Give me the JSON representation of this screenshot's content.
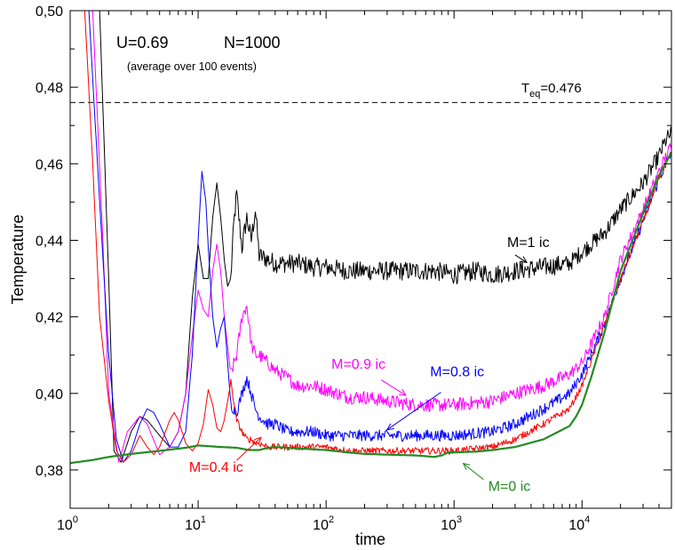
{
  "chart_data": {
    "type": "line",
    "xlabel": "time",
    "ylabel": "Temperature",
    "xscale": "log",
    "xlim": [
      1,
      50000
    ],
    "ylim": [
      0.37,
      0.5
    ],
    "x_ticks": [
      {
        "value": 1,
        "base": "10",
        "exp": "0"
      },
      {
        "value": 10,
        "base": "10",
        "exp": "1"
      },
      {
        "value": 100,
        "base": "10",
        "exp": "2"
      },
      {
        "value": 1000,
        "base": "10",
        "exp": "3"
      },
      {
        "value": 10000,
        "base": "10",
        "exp": "4"
      }
    ],
    "y_ticks": [
      {
        "value": 0.38,
        "label": "0,38"
      },
      {
        "value": 0.4,
        "label": "0,40"
      },
      {
        "value": 0.42,
        "label": "0,42"
      },
      {
        "value": 0.44,
        "label": "0,44"
      },
      {
        "value": 0.46,
        "label": "0,46"
      },
      {
        "value": 0.48,
        "label": "0,48"
      },
      {
        "value": 0.5,
        "label": "0,50"
      }
    ],
    "reference_line": {
      "y": 0.476,
      "label_main": "T",
      "label_sub": "eq",
      "label_rest": "=0.476"
    },
    "info": {
      "params": "U=0.69",
      "size": "N=1000",
      "note": "(average over 100 events)"
    },
    "series": [
      {
        "name": "M=1 ic",
        "color": "#000000",
        "width": 1,
        "noise": 0.0025,
        "x": [
          1,
          1.7,
          2,
          2.2,
          2.5,
          3,
          3.5,
          4,
          5,
          6,
          7,
          8,
          9,
          10,
          11,
          12,
          13,
          14,
          15,
          16,
          17,
          18,
          19,
          20,
          22,
          24,
          26,
          28,
          30,
          35,
          40,
          50,
          60,
          80,
          100,
          150,
          200,
          300,
          500,
          700,
          1000,
          1500,
          2000,
          3000,
          5000,
          8000,
          10000,
          15000,
          20000,
          30000,
          40000,
          45000,
          50000
        ],
        "y": [
          0.52,
          0.5,
          0.43,
          0.385,
          0.382,
          0.39,
          0.394,
          0.393,
          0.389,
          0.386,
          0.39,
          0.4,
          0.425,
          0.439,
          0.43,
          0.43,
          0.446,
          0.455,
          0.446,
          0.435,
          0.428,
          0.43,
          0.444,
          0.452,
          0.438,
          0.446,
          0.44,
          0.448,
          0.436,
          0.435,
          0.434,
          0.434,
          0.434,
          0.433,
          0.433,
          0.432,
          0.432,
          0.432,
          0.432,
          0.432,
          0.431,
          0.432,
          0.431,
          0.432,
          0.433,
          0.434,
          0.437,
          0.442,
          0.448,
          0.455,
          0.462,
          0.466,
          0.468
        ]
      },
      {
        "name": "M=0.9 ic",
        "color": "#ff00ff",
        "width": 1,
        "noise": 0.0018,
        "x": [
          1,
          1.5,
          1.8,
          2,
          2.4,
          2.8,
          3.5,
          4,
          5,
          6,
          7,
          8,
          9,
          10,
          11,
          12,
          13,
          14,
          15,
          16,
          18,
          20,
          22,
          24,
          26,
          28,
          30,
          35,
          40,
          50,
          60,
          80,
          100,
          150,
          200,
          300,
          500,
          700,
          1000,
          2000,
          3000,
          5000,
          8000,
          10000,
          15000,
          20000,
          30000,
          40000,
          50000
        ],
        "y": [
          0.52,
          0.5,
          0.44,
          0.4,
          0.382,
          0.39,
          0.394,
          0.392,
          0.384,
          0.386,
          0.39,
          0.4,
          0.415,
          0.427,
          0.422,
          0.42,
          0.432,
          0.439,
          0.432,
          0.42,
          0.405,
          0.41,
          0.42,
          0.423,
          0.413,
          0.41,
          0.41,
          0.408,
          0.406,
          0.404,
          0.402,
          0.402,
          0.401,
          0.399,
          0.399,
          0.398,
          0.397,
          0.397,
          0.397,
          0.398,
          0.4,
          0.402,
          0.405,
          0.408,
          0.42,
          0.435,
          0.448,
          0.458,
          0.465
        ]
      },
      {
        "name": "M=0.8 ic",
        "color": "#0000ff",
        "width": 1,
        "noise": 0.0015,
        "x": [
          1,
          1.4,
          1.7,
          2,
          2.3,
          2.6,
          3,
          3.5,
          4,
          4.5,
          5,
          6,
          7,
          8,
          9,
          10,
          10.7,
          11.5,
          12,
          13,
          14,
          15,
          16,
          17,
          18,
          20,
          22,
          24,
          26,
          28,
          30,
          35,
          40,
          50,
          60,
          80,
          100,
          150,
          200,
          300,
          500,
          700,
          1000,
          2000,
          3000,
          5000,
          8000,
          10000,
          15000,
          20000,
          30000,
          40000,
          50000
        ],
        "y": [
          0.52,
          0.5,
          0.45,
          0.41,
          0.388,
          0.382,
          0.385,
          0.392,
          0.396,
          0.395,
          0.392,
          0.386,
          0.386,
          0.39,
          0.41,
          0.44,
          0.458,
          0.45,
          0.438,
          0.42,
          0.412,
          0.417,
          0.42,
          0.408,
          0.397,
          0.395,
          0.4,
          0.404,
          0.4,
          0.396,
          0.394,
          0.392,
          0.392,
          0.39,
          0.39,
          0.39,
          0.389,
          0.389,
          0.389,
          0.389,
          0.389,
          0.389,
          0.389,
          0.39,
          0.392,
          0.396,
          0.4,
          0.405,
          0.418,
          0.43,
          0.445,
          0.456,
          0.463
        ]
      },
      {
        "name": "M=0.4 ic",
        "color": "#ff0000",
        "width": 1,
        "noise": 0.0009,
        "x": [
          1,
          1.3,
          1.5,
          1.7,
          2,
          2.3,
          2.6,
          3,
          3.5,
          4,
          4.5,
          5,
          6,
          6.5,
          7,
          8,
          9,
          10,
          11,
          12,
          13,
          14,
          15,
          16,
          17,
          18,
          19,
          20,
          22,
          24,
          26,
          28,
          30,
          35,
          40,
          50,
          60,
          80,
          100,
          150,
          200,
          300,
          500,
          700,
          1000,
          2000,
          3000,
          5000,
          8000,
          10000,
          15000,
          20000,
          30000,
          40000,
          50000
        ],
        "y": [
          0.52,
          0.5,
          0.46,
          0.42,
          0.398,
          0.385,
          0.382,
          0.384,
          0.389,
          0.386,
          0.384,
          0.386,
          0.393,
          0.395,
          0.393,
          0.387,
          0.385,
          0.387,
          0.392,
          0.401,
          0.397,
          0.391,
          0.39,
          0.393,
          0.398,
          0.403,
          0.398,
          0.393,
          0.39,
          0.388,
          0.388,
          0.387,
          0.387,
          0.386,
          0.386,
          0.386,
          0.386,
          0.386,
          0.386,
          0.385,
          0.385,
          0.385,
          0.385,
          0.385,
          0.385,
          0.386,
          0.388,
          0.392,
          0.396,
          0.402,
          0.418,
          0.43,
          0.445,
          0.456,
          0.463
        ]
      },
      {
        "name": "M=0 ic",
        "color": "#228b22",
        "width": 2.2,
        "noise": 0,
        "x": [
          1,
          1.5,
          2,
          3,
          5,
          8,
          10,
          15,
          20,
          25,
          30,
          35,
          40,
          50,
          60,
          80,
          100,
          150,
          200,
          300,
          500,
          600,
          700,
          800,
          900,
          1000,
          1500,
          2000,
          3000,
          5000,
          7000,
          8000,
          9000,
          10000,
          12000,
          15000,
          20000,
          30000,
          40000,
          50000
        ],
        "y": [
          0.3818,
          0.3826,
          0.3834,
          0.3842,
          0.385,
          0.3858,
          0.3864,
          0.386,
          0.3858,
          0.3852,
          0.3852,
          0.3858,
          0.386,
          0.3858,
          0.3856,
          0.3854,
          0.3852,
          0.3846,
          0.3842,
          0.384,
          0.3838,
          0.3836,
          0.3834,
          0.3838,
          0.3846,
          0.3846,
          0.3848,
          0.3852,
          0.386,
          0.388,
          0.3905,
          0.3915,
          0.394,
          0.397,
          0.405,
          0.416,
          0.432,
          0.447,
          0.457,
          0.463
        ]
      }
    ],
    "annotations": [
      {
        "text": "M=1 ic",
        "color": "#000000",
        "label_x": 2600,
        "label_y": 0.4382,
        "anchor": "start",
        "arrow_from_x": 3000,
        "arrow_from_y": 0.4362,
        "arrow_to_x": 3700,
        "arrow_to_y": 0.4342
      },
      {
        "text": "M=0.9 ic",
        "color": "#ff00ff",
        "label_x": 110,
        "label_y": 0.4065,
        "anchor": "start",
        "arrow_from_x": 270,
        "arrow_from_y": 0.4035,
        "arrow_to_x": 420,
        "arrow_to_y": 0.3995
      },
      {
        "text": "M=0.8 ic",
        "color": "#0000ff",
        "label_x": 650,
        "label_y": 0.4045,
        "anchor": "start",
        "arrow_from_x": 790,
        "arrow_from_y": 0.4003,
        "arrow_to_x": 300,
        "arrow_to_y": 0.3905
      },
      {
        "text": "M=0.4 ic",
        "color": "#ff0000",
        "label_x": 8.5,
        "label_y": 0.3795,
        "anchor": "start",
        "arrow_from_x": 20,
        "arrow_from_y": 0.3825,
        "arrow_to_x": 31,
        "arrow_to_y": 0.3885
      },
      {
        "text": "M=0 ic",
        "color": "#228b22",
        "label_x": 1850,
        "label_y": 0.3745,
        "anchor": "start",
        "arrow_from_x": 1700,
        "arrow_from_y": 0.3775,
        "arrow_to_x": 1180,
        "arrow_to_y": 0.3817
      }
    ]
  }
}
